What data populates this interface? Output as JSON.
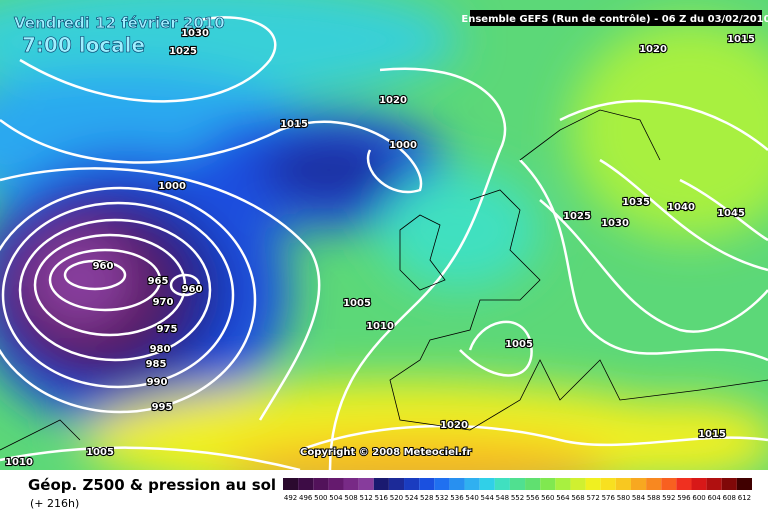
{
  "header": {
    "date": "Vendredi 12 février 2010",
    "time": "7:00 locale",
    "model": "Ensemble GEFS (Run de contrôle)  -  06 Z du 03/02/2010"
  },
  "map": {
    "isobar_labels": [
      "1030",
      "1025",
      "1020",
      "1020",
      "1015",
      "1015",
      "1000",
      "1000",
      "1025",
      "1030",
      "1035",
      "1040",
      "1045",
      "960",
      "965",
      "960",
      "970",
      "975",
      "980",
      "985",
      "990",
      "995",
      "1005",
      "1010",
      "1005",
      "1020",
      "1015",
      "1005",
      "1010"
    ],
    "copyright": "Copyright © 2008 Meteociel.fr"
  },
  "footer": {
    "title": "Géop. Z500 & pression au sol",
    "lead": "(+ 216h)",
    "scale": [
      {
        "label": "492",
        "color": "#2b0a2e"
      },
      {
        "label": "496",
        "color": "#3d0c45"
      },
      {
        "label": "500",
        "color": "#52125a"
      },
      {
        "label": "504",
        "color": "#651a6e"
      },
      {
        "label": "508",
        "color": "#782a86"
      },
      {
        "label": "512",
        "color": "#873c9c"
      },
      {
        "label": "516",
        "color": "#1a1a70"
      },
      {
        "label": "520",
        "color": "#1c2a98"
      },
      {
        "label": "524",
        "color": "#1a3cc0"
      },
      {
        "label": "528",
        "color": "#1a50e0"
      },
      {
        "label": "532",
        "color": "#2070f0"
      },
      {
        "label": "536",
        "color": "#2890f0"
      },
      {
        "label": "540",
        "color": "#30b0f0"
      },
      {
        "label": "544",
        "color": "#30d0e8"
      },
      {
        "label": "548",
        "color": "#40e0c0"
      },
      {
        "label": "552",
        "color": "#50e090"
      },
      {
        "label": "556",
        "color": "#60e070"
      },
      {
        "label": "560",
        "color": "#80e850"
      },
      {
        "label": "564",
        "color": "#a8f040"
      },
      {
        "label": "568",
        "color": "#d0f030"
      },
      {
        "label": "572",
        "color": "#f0f020"
      },
      {
        "label": "576",
        "color": "#f8e020"
      },
      {
        "label": "580",
        "color": "#f8c820"
      },
      {
        "label": "584",
        "color": "#f8a820"
      },
      {
        "label": "588",
        "color": "#f88820"
      },
      {
        "label": "592",
        "color": "#f86020"
      },
      {
        "label": "596",
        "color": "#f03020"
      },
      {
        "label": "600",
        "color": "#d81818"
      },
      {
        "label": "604",
        "color": "#b01010"
      },
      {
        "label": "608",
        "color": "#800808"
      },
      {
        "label": "612",
        "color": "#400000"
      }
    ]
  }
}
